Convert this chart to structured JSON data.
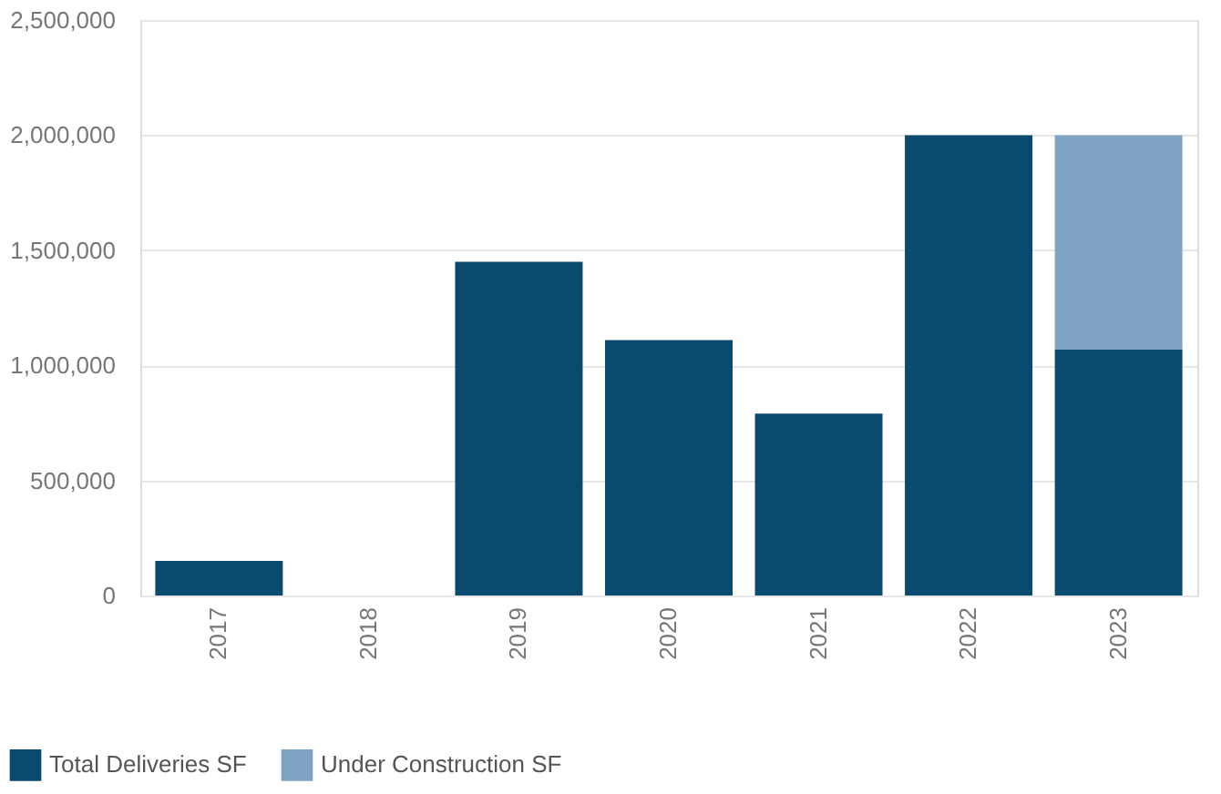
{
  "chart_data": {
    "type": "bar",
    "stacked": true,
    "categories": [
      "2017",
      "2018",
      "2019",
      "2020",
      "2021",
      "2022",
      "2023"
    ],
    "series": [
      {
        "name": "Total Deliveries SF",
        "color": "#0b4a6f",
        "values": [
          150000,
          0,
          1450000,
          1110000,
          790000,
          2000000,
          1070000
        ]
      },
      {
        "name": "Under Construction SF",
        "color": "#7fa3c2",
        "values": [
          0,
          0,
          0,
          0,
          0,
          0,
          930000
        ]
      }
    ],
    "ylim": [
      0,
      2500000
    ],
    "yticks": [
      {
        "value": 0,
        "label": "0"
      },
      {
        "value": 500000,
        "label": "500,000"
      },
      {
        "value": 1000000,
        "label": "1,000,000"
      },
      {
        "value": 1500000,
        "label": "1,500,000"
      },
      {
        "value": 2000000,
        "label": "2,000,000"
      },
      {
        "value": 2500000,
        "label": "2,500,000"
      }
    ],
    "grid": "y",
    "legend": "bottom left"
  }
}
